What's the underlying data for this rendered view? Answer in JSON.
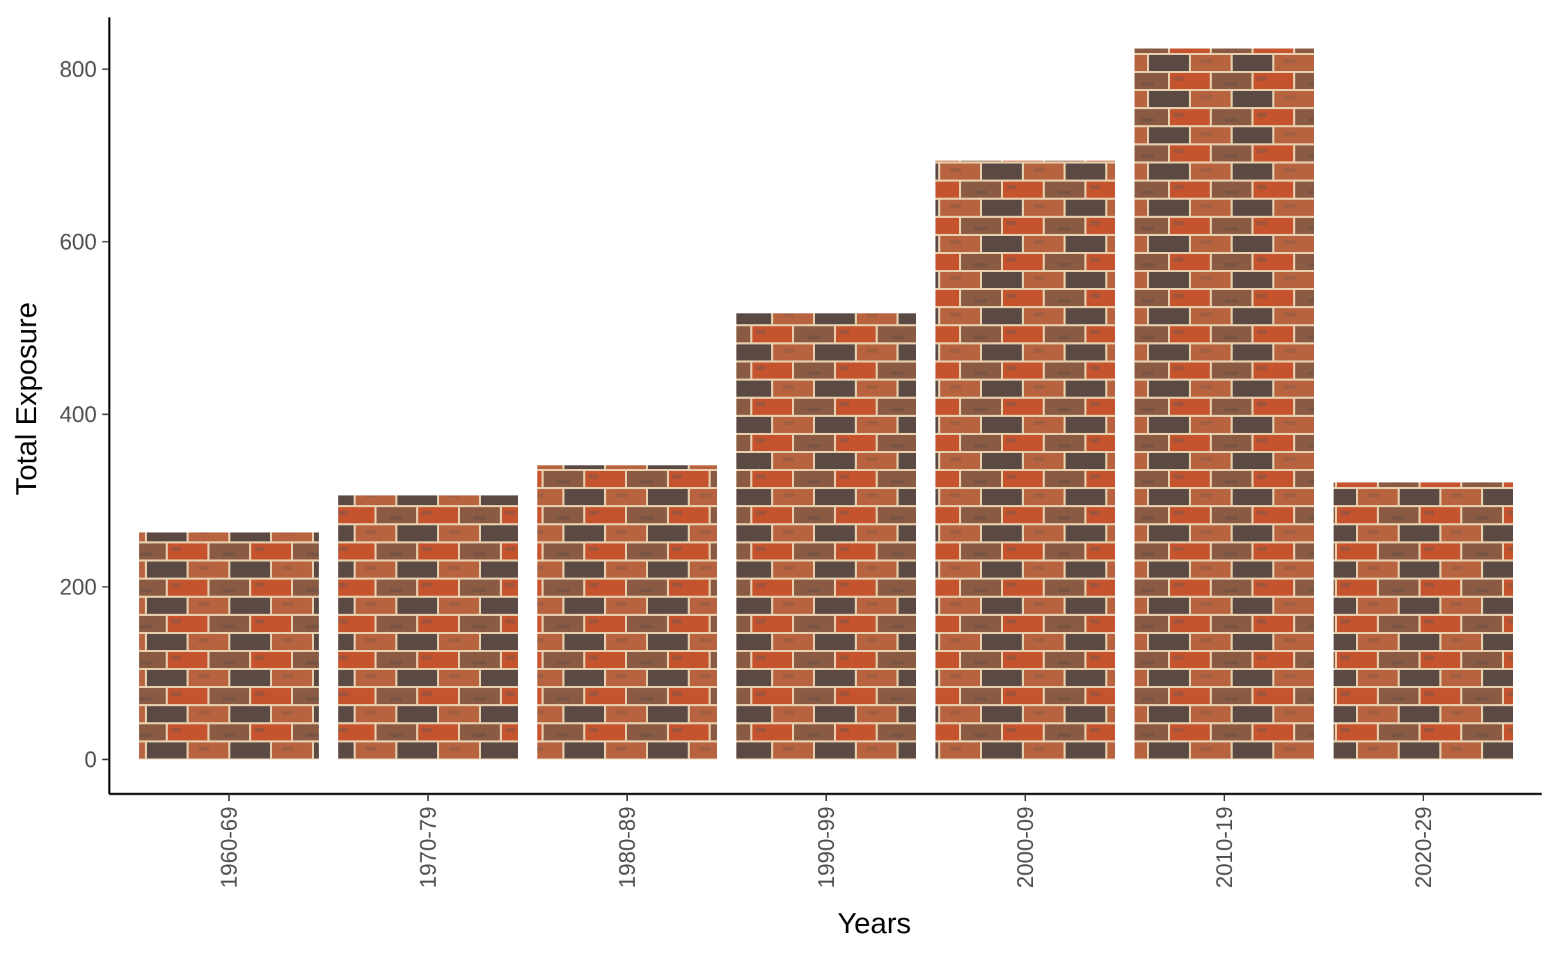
{
  "chart_data": {
    "type": "bar",
    "xlabel": "Years",
    "ylabel": "Total Exposure",
    "categories": [
      "1960-69",
      "1970-79",
      "1980-89",
      "1990-99",
      "2000-09",
      "2010-19",
      "2020-29"
    ],
    "values": [
      263,
      306,
      341,
      517,
      694,
      824,
      321
    ],
    "ylim": [
      -40,
      860
    ],
    "yticks": [
      0,
      200,
      400,
      600,
      800
    ],
    "grid": false,
    "legend": "none",
    "bar_fill": "brick-wall-texture",
    "colors": {
      "brick_red": "#c4532e",
      "brick_brown": "#8a5a43",
      "brick_dark": "#5b4a44",
      "mortar": "#e8cfae",
      "axis": "#000000",
      "tick_text": "#4d4d4d"
    }
  }
}
